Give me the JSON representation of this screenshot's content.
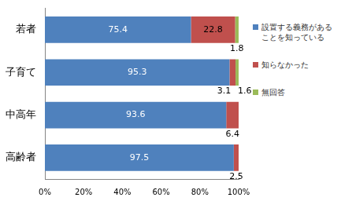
{
  "chart_data": {
    "type": "bar",
    "orientation": "horizontal",
    "stacked": true,
    "categories": [
      "若者",
      "子育て",
      "中高年",
      "高齢者"
    ],
    "series": [
      {
        "name": "設置する義務があることを知っている",
        "color": "#4f81bd",
        "values": [
          75.4,
          95.3,
          93.6,
          97.5
        ]
      },
      {
        "name": "知らなかった",
        "color": "#c0504d",
        "values": [
          22.8,
          3.1,
          6.4,
          2.5
        ]
      },
      {
        "name": "無回答",
        "color": "#9bbb59",
        "values": [
          1.8,
          1.6,
          null,
          null
        ]
      }
    ],
    "xlim": [
      0,
      100
    ],
    "xticks": [
      {
        "value": 0,
        "label": "0%"
      },
      {
        "value": 20,
        "label": "20%"
      },
      {
        "value": 40,
        "label": "40%"
      },
      {
        "value": 60,
        "label": "60%"
      },
      {
        "value": 80,
        "label": "80%"
      },
      {
        "value": 100,
        "label": "100%"
      }
    ],
    "grid": false,
    "legend": "right",
    "data_labels": true
  }
}
